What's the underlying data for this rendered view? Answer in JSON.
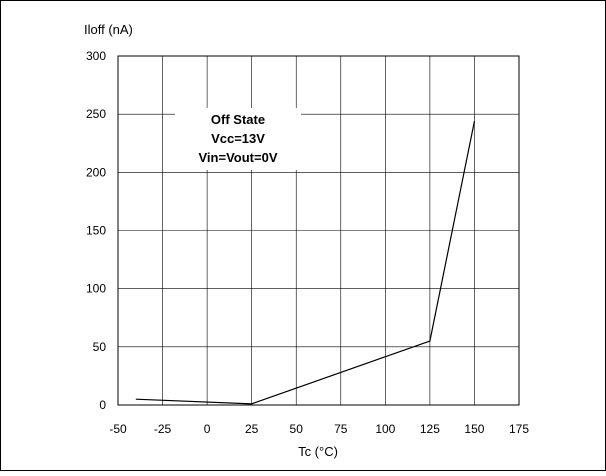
{
  "chart_data": {
    "type": "line",
    "title": "",
    "xlabel": "Tc (°C)",
    "ylabel": "Iloff (nA)",
    "xlim": [
      -50,
      175
    ],
    "ylim": [
      0,
      300
    ],
    "x_ticks": [
      -50,
      -25,
      0,
      25,
      50,
      75,
      100,
      125,
      150,
      175
    ],
    "y_ticks": [
      0,
      50,
      100,
      150,
      200,
      250,
      300
    ],
    "grid": true,
    "legend": "none",
    "annotation": {
      "lines": [
        "Off State",
        "Vcc=13V",
        "Vin=Vout=0V"
      ]
    },
    "series": [
      {
        "color": "#000000",
        "x": [
          -40,
          25,
          125,
          150
        ],
        "y": [
          5,
          1,
          55,
          244
        ]
      }
    ]
  }
}
